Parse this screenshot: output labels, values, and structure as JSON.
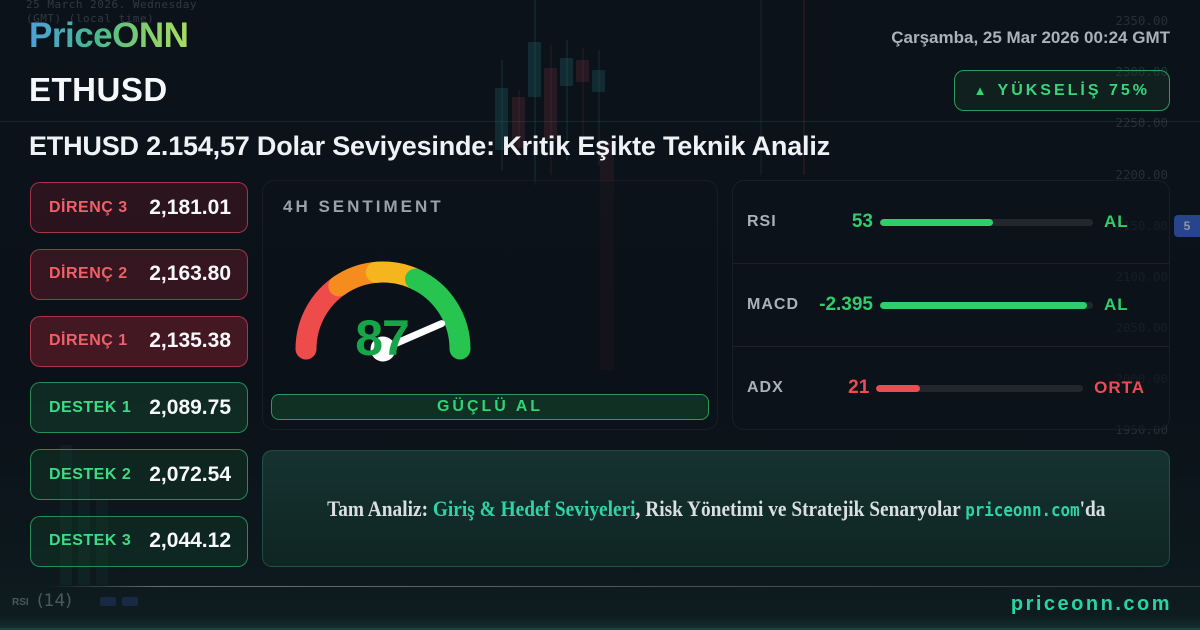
{
  "brand": {
    "logo_text": "PriceONN"
  },
  "header": {
    "datetime": "Çarşamba, 25 Mar 2026 00:24 GMT",
    "symbol": "ETHUSD",
    "badge": {
      "icon": "up-triangle",
      "label": "YÜKSELİŞ 75%"
    }
  },
  "headline": "ETHUSD 2.154,57 Dolar Seviyesinde: Kritik Eşikte Teknik Analiz",
  "levels": {
    "resistance": [
      {
        "label": "DİRENÇ 3",
        "value": "2,181.01"
      },
      {
        "label": "DİRENÇ 2",
        "value": "2,163.80"
      },
      {
        "label": "DİRENÇ 1",
        "value": "2,135.38"
      }
    ],
    "support": [
      {
        "label": "DESTEK 1",
        "value": "2,089.75"
      },
      {
        "label": "DESTEK 2",
        "value": "2,072.54"
      },
      {
        "label": "DESTEK 3",
        "value": "2,044.12"
      }
    ]
  },
  "sentiment": {
    "card_title": "4H SENTIMENT",
    "gauge_value": 87,
    "gauge_max": 100,
    "signal": "GÜÇLÜ AL"
  },
  "indicators": [
    {
      "name": "RSI",
      "value": "53",
      "bar_percent": 53,
      "signal": "AL",
      "tone": "green"
    },
    {
      "name": "MACD",
      "value": "-2.395",
      "bar_percent": 97,
      "signal": "AL",
      "tone": "green"
    },
    {
      "name": "ADX",
      "value": "21",
      "bar_percent": 21,
      "signal": "ORTA",
      "tone": "red"
    }
  ],
  "cta": {
    "prefix": "Tam Analiz: ",
    "link_text": "Giriş & Hedef Seviyeleri",
    "middle": ", Risk Yönetimi ve Stratejik Senaryolar ",
    "site": "priceonn.com",
    "suffix": "'da"
  },
  "footer": {
    "site": "priceonn.com",
    "faint_indicator": "RSI",
    "faint_period": "(14)"
  },
  "background": {
    "faint_date_line1": "25 March 2026. Wednesday",
    "faint_date_line2": "(GMT) (local time)",
    "axis_labels": [
      "2350.00",
      "2300.00",
      "2250.00",
      "2200.00",
      "2150.00",
      "2100.00",
      "2050.00",
      "2000.00",
      "1950.00"
    ],
    "price_tag": "5"
  },
  "colors": {
    "accent_green": "#2fd474",
    "accent_teal": "#2fd3a4",
    "danger_red": "#ef4b52",
    "resistance_label": "#ef6168",
    "support_label": "#3ddc84",
    "gauge_red": "#ee4b4b",
    "gauge_orange": "#f78c1e",
    "gauge_amber": "#f4b51e",
    "gauge_green": "#27c44f",
    "gauge_value_green": "#17a54a"
  }
}
